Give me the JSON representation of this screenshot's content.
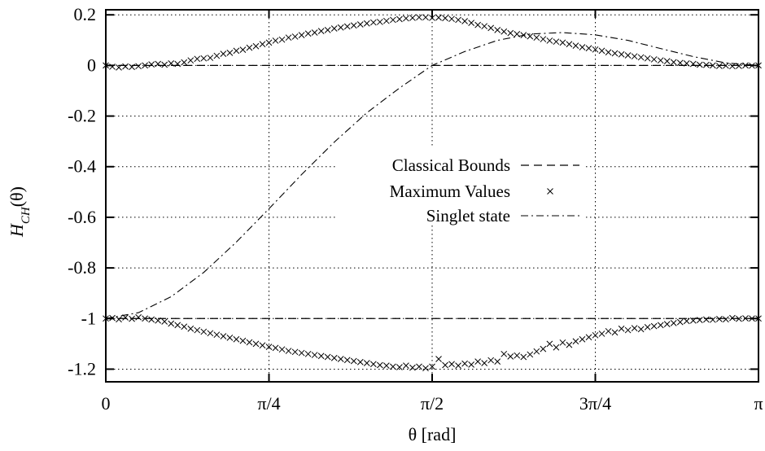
{
  "chart_data": {
    "type": "scatter",
    "xlabel": "θ [rad]",
    "ylabel_main": "H",
    "ylabel_sub": "CH",
    "ylabel_tail": "(θ)",
    "xlim": [
      0,
      3.14159
    ],
    "ylim": [
      -1.25,
      0.22
    ],
    "x_ticks": [
      {
        "value": 0,
        "label": "0"
      },
      {
        "value": 0.785398,
        "label": "π/4"
      },
      {
        "value": 1.570796,
        "label": "π/2"
      },
      {
        "value": 2.356194,
        "label": "3π/4"
      },
      {
        "value": 3.141593,
        "label": "π"
      }
    ],
    "y_ticks": [
      {
        "value": 0.2,
        "label": "0.2"
      },
      {
        "value": 0,
        "label": "0"
      },
      {
        "value": -0.2,
        "label": "-0.2"
      },
      {
        "value": -0.4,
        "label": "-0.4"
      },
      {
        "value": -0.6,
        "label": "-0.6"
      },
      {
        "value": -0.8,
        "label": "-0.8"
      },
      {
        "value": -1,
        "label": "-1"
      },
      {
        "value": -1.2,
        "label": "-1.2"
      }
    ],
    "grid": true,
    "legend_placement": "center-right",
    "legend": [
      {
        "label": "Classical Bounds",
        "style": "dashed"
      },
      {
        "label": "Maximum Values",
        "style": "cross"
      },
      {
        "label": "Singlet state",
        "style": "dash-dot"
      }
    ],
    "series": [
      {
        "name": "Classical Bounds",
        "style": "dashed",
        "x": [
          0,
          3.1416
        ],
        "y": [
          0,
          0
        ]
      },
      {
        "name": "Classical Bounds",
        "style": "dashed",
        "x": [
          0,
          3.1416
        ],
        "y": [
          -1,
          -1
        ]
      },
      {
        "name": "Singlet state",
        "style": "dash-dot",
        "x": [
          0,
          0.1571,
          0.3142,
          0.4712,
          0.6283,
          0.7854,
          0.9425,
          1.0996,
          1.2566,
          1.4137,
          1.5708,
          1.7279,
          1.885,
          2.042,
          2.1991,
          2.3562,
          2.5133,
          2.6704,
          2.8274,
          2.9845,
          3.1416
        ],
        "y": [
          -1.0,
          -0.977,
          -0.914,
          -0.818,
          -0.698,
          -0.566,
          -0.431,
          -0.303,
          -0.187,
          -0.089,
          -0.0,
          0.055,
          0.099,
          0.124,
          0.13,
          0.121,
          0.099,
          0.067,
          0.035,
          0.01,
          0.0
        ]
      },
      {
        "name": "Maximum Values",
        "style": "cross",
        "x": [
          0.0,
          0.0314,
          0.0628,
          0.0942,
          0.1257,
          0.1571,
          0.1885,
          0.2199,
          0.2513,
          0.2827,
          0.3142,
          0.3456,
          0.377,
          0.4084,
          0.4398,
          0.4712,
          0.5027,
          0.5341,
          0.5655,
          0.5969,
          0.6283,
          0.6597,
          0.6912,
          0.7226,
          0.754,
          0.7854,
          0.8168,
          0.8482,
          0.8796,
          0.9111,
          0.9425,
          0.9739,
          1.0053,
          1.0367,
          1.0681,
          1.0996,
          1.131,
          1.1624,
          1.1938,
          1.2252,
          1.2566,
          1.2881,
          1.3195,
          1.3509,
          1.3823,
          1.4137,
          1.4451,
          1.4765,
          1.508,
          1.5394,
          1.5708,
          1.6022,
          1.6336,
          1.665,
          1.6965,
          1.7279,
          1.7593,
          1.7907,
          1.8221,
          1.8535,
          1.885,
          1.9164,
          1.9478,
          1.9792,
          2.0106,
          2.042,
          2.0735,
          2.1049,
          2.1363,
          2.1677,
          2.1991,
          2.2305,
          2.2619,
          2.2934,
          2.3248,
          2.3562,
          2.3876,
          2.419,
          2.4504,
          2.4819,
          2.5133,
          2.5447,
          2.5761,
          2.6075,
          2.6389,
          2.6704,
          2.7018,
          2.7332,
          2.7646,
          2.796,
          2.8274,
          2.8588,
          2.8903,
          2.9217,
          2.9531,
          2.9845,
          3.0159,
          3.0473,
          3.0788,
          3.1102,
          3.1416
        ],
        "y": [
          0.0,
          -0.005,
          -0.008,
          -0.004,
          -0.006,
          -0.003,
          0.0,
          0.004,
          0.006,
          0.003,
          0.008,
          0.006,
          0.012,
          0.02,
          0.026,
          0.028,
          0.03,
          0.038,
          0.046,
          0.05,
          0.058,
          0.062,
          0.07,
          0.076,
          0.084,
          0.09,
          0.098,
          0.102,
          0.11,
          0.114,
          0.12,
          0.126,
          0.13,
          0.136,
          0.14,
          0.146,
          0.15,
          0.154,
          0.158,
          0.162,
          0.166,
          0.17,
          0.172,
          0.176,
          0.18,
          0.183,
          0.186,
          0.188,
          0.19,
          0.19,
          0.188,
          0.189,
          0.187,
          0.184,
          0.18,
          0.175,
          0.168,
          0.16,
          0.155,
          0.148,
          0.14,
          0.134,
          0.128,
          0.124,
          0.12,
          0.115,
          0.11,
          0.104,
          0.098,
          0.094,
          0.09,
          0.084,
          0.078,
          0.072,
          0.068,
          0.063,
          0.058,
          0.052,
          0.048,
          0.044,
          0.04,
          0.036,
          0.032,
          0.028,
          0.024,
          0.02,
          0.017,
          0.013,
          0.01,
          0.008,
          0.006,
          0.003,
          0.002,
          0.0,
          -0.002,
          -0.001,
          -0.003,
          -0.002,
          0.0,
          -0.001,
          0.0
        ]
      },
      {
        "name": "Maximum Values",
        "style": "cross",
        "x": [
          0.0,
          0.0314,
          0.0628,
          0.0942,
          0.1257,
          0.1571,
          0.1885,
          0.2199,
          0.2513,
          0.2827,
          0.3142,
          0.3456,
          0.377,
          0.4084,
          0.4398,
          0.4712,
          0.5027,
          0.5341,
          0.5655,
          0.5969,
          0.6283,
          0.6597,
          0.6912,
          0.7226,
          0.754,
          0.7854,
          0.8168,
          0.8482,
          0.8796,
          0.9111,
          0.9425,
          0.9739,
          1.0053,
          1.0367,
          1.0681,
          1.0996,
          1.131,
          1.1624,
          1.1938,
          1.2252,
          1.2566,
          1.2881,
          1.3195,
          1.3509,
          1.3823,
          1.4137,
          1.4451,
          1.4765,
          1.508,
          1.5394,
          1.5708,
          1.6022,
          1.6336,
          1.665,
          1.6965,
          1.7279,
          1.7593,
          1.7907,
          1.8221,
          1.8535,
          1.885,
          1.9164,
          1.9478,
          1.9792,
          2.0106,
          2.042,
          2.0735,
          2.1049,
          2.1363,
          2.1677,
          2.1991,
          2.2305,
          2.2619,
          2.2934,
          2.3248,
          2.3562,
          2.3876,
          2.419,
          2.4504,
          2.4819,
          2.5133,
          2.5447,
          2.5761,
          2.6075,
          2.6389,
          2.6704,
          2.7018,
          2.7332,
          2.7646,
          2.796,
          2.8274,
          2.8588,
          2.8903,
          2.9217,
          2.9531,
          2.9845,
          3.0159,
          3.0473,
          3.0788,
          3.1102,
          3.1416
        ],
        "y": [
          -1.0,
          -0.998,
          -1.003,
          -0.996,
          -1.001,
          -0.995,
          -1.0,
          -1.004,
          -1.008,
          -1.012,
          -1.02,
          -1.026,
          -1.032,
          -1.04,
          -1.046,
          -1.052,
          -1.058,
          -1.064,
          -1.07,
          -1.076,
          -1.082,
          -1.088,
          -1.094,
          -1.1,
          -1.106,
          -1.112,
          -1.116,
          -1.122,
          -1.128,
          -1.132,
          -1.136,
          -1.14,
          -1.144,
          -1.148,
          -1.152,
          -1.156,
          -1.16,
          -1.164,
          -1.168,
          -1.172,
          -1.176,
          -1.18,
          -1.184,
          -1.186,
          -1.19,
          -1.192,
          -1.186,
          -1.194,
          -1.19,
          -1.196,
          -1.19,
          -1.16,
          -1.184,
          -1.18,
          -1.186,
          -1.178,
          -1.182,
          -1.17,
          -1.176,
          -1.165,
          -1.17,
          -1.14,
          -1.15,
          -1.146,
          -1.152,
          -1.142,
          -1.13,
          -1.12,
          -1.1,
          -1.114,
          -1.095,
          -1.104,
          -1.09,
          -1.082,
          -1.074,
          -1.066,
          -1.06,
          -1.05,
          -1.055,
          -1.04,
          -1.046,
          -1.038,
          -1.042,
          -1.034,
          -1.03,
          -1.026,
          -1.022,
          -1.018,
          -1.014,
          -1.01,
          -1.008,
          -1.006,
          -1.004,
          -1.005,
          -1.002,
          -1.003,
          -0.998,
          -1.001,
          -0.999,
          -1.0,
          -1.0
        ]
      }
    ]
  }
}
